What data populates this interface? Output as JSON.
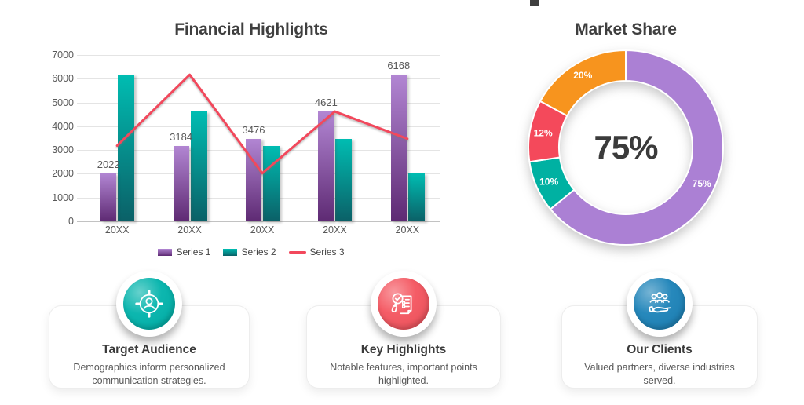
{
  "chart_data": [
    {
      "type": "bar",
      "subtype": "clustered-bar-with-line",
      "title": "Financial Highlights",
      "categories": [
        "20XX",
        "20XX",
        "20XX",
        "20XX",
        "20XX"
      ],
      "series": [
        {
          "name": "Series 1",
          "type": "bar",
          "values": [
            2022,
            3184,
            3476,
            4621,
            6168
          ],
          "data_labels": [
            "2022",
            "3184",
            "3476",
            "4621",
            "6168"
          ],
          "color_top": "#b286d3",
          "color_bottom": "#5e2a73"
        },
        {
          "name": "Series 2",
          "type": "bar",
          "values": [
            6168,
            4621,
            3184,
            3476,
            2022
          ],
          "color_top": "#00bdb2",
          "color_bottom": "#0b6067"
        },
        {
          "name": "Series 3",
          "type": "line",
          "values": [
            3184,
            6168,
            2022,
            4621,
            3476
          ],
          "color": "#f2485c"
        }
      ],
      "ylim": [
        0,
        7000
      ],
      "y_ticks": [
        "7000",
        "6000",
        "5000",
        "4000",
        "3000",
        "2000",
        "1000",
        "0"
      ],
      "grid": true,
      "legend_position": "bottom"
    },
    {
      "type": "pie",
      "subtype": "donut",
      "title": "Market Share",
      "center_label": "75%",
      "direction": "clockwise",
      "start_angle_deg": 0,
      "segments": [
        {
          "label": "75%",
          "value": 75,
          "color": "#ab80d4"
        },
        {
          "label": "10%",
          "value": 10,
          "color": "#00b1a2"
        },
        {
          "label": "12%",
          "value": 12,
          "color": "#f4495b"
        },
        {
          "label": "20%",
          "value": 20,
          "color": "#f7941e"
        }
      ]
    }
  ],
  "cards": [
    {
      "title": "Target Audience",
      "description": "Demographics inform personalized communication strategies.",
      "icon": "target-audience-icon",
      "color": "#00b3ab"
    },
    {
      "title": "Key Highlights",
      "description": "Notable features, important points highlighted.",
      "icon": "key-highlights-icon",
      "color": "#f4545e"
    },
    {
      "title": "Our Clients",
      "description": "Valued partners, diverse industries served.",
      "icon": "our-clients-icon",
      "color": "#1b82b8"
    }
  ]
}
